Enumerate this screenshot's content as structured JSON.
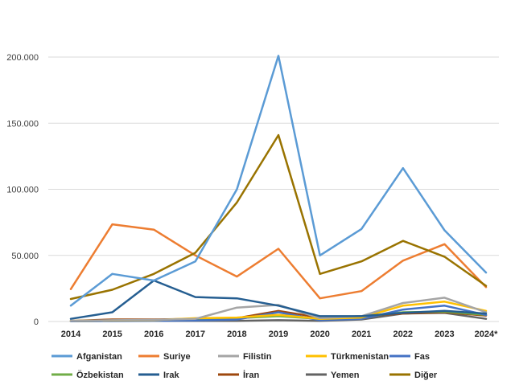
{
  "chart_data": {
    "type": "line",
    "title": "",
    "xlabel": "",
    "ylabel": "",
    "categories": [
      "2014",
      "2015",
      "2016",
      "2017",
      "2018",
      "2019",
      "2020",
      "2021",
      "2022",
      "2023",
      "2024*"
    ],
    "ylim": [
      0,
      200000
    ],
    "yticks": [
      0,
      50000,
      100000,
      150000,
      200000
    ],
    "ytick_labels": [
      "0",
      "50.000",
      "100.000",
      "150.000",
      "200.000"
    ],
    "grid": "horizontal",
    "legend_position": "bottom",
    "series": [
      {
        "name": "Afganistan",
        "color": "#5b9bd5",
        "values": [
          12000,
          36000,
          31000,
          45500,
          100000,
          201000,
          50000,
          70000,
          116000,
          69000,
          37000
        ]
      },
      {
        "name": "Suriye",
        "color": "#ed7d31",
        "values": [
          24500,
          73500,
          69500,
          50000,
          34000,
          55000,
          17500,
          23000,
          46000,
          58500,
          26000
        ]
      },
      {
        "name": "Filistin",
        "color": "#a5a5a5",
        "values": [
          500,
          1000,
          1200,
          2000,
          10500,
          12500,
          2500,
          4000,
          14000,
          18000,
          7000
        ]
      },
      {
        "name": "Türkmenistan",
        "color": "#ffc000",
        "values": [
          500,
          800,
          1000,
          2500,
          3000,
          5000,
          2000,
          3000,
          12000,
          15000,
          8000
        ]
      },
      {
        "name": "Fas",
        "color": "#4472c4",
        "values": [
          200,
          300,
          500,
          800,
          1500,
          7000,
          1000,
          2000,
          9000,
          12000,
          5000
        ]
      },
      {
        "name": "Özbekistan",
        "color": "#70ad47",
        "values": [
          300,
          500,
          700,
          1200,
          2500,
          4000,
          2000,
          3500,
          7000,
          7500,
          5000
        ]
      },
      {
        "name": "Irak",
        "color": "#255e91",
        "values": [
          2000,
          7000,
          31000,
          18500,
          17500,
          12000,
          4000,
          4000,
          6500,
          8000,
          6000
        ]
      },
      {
        "name": "İran",
        "color": "#9e480e",
        "values": [
          500,
          1500,
          1500,
          2000,
          2500,
          8000,
          3000,
          4000,
          6000,
          7000,
          4500
        ]
      },
      {
        "name": "Yemen",
        "color": "#636363",
        "values": [
          300,
          500,
          500,
          500,
          500,
          1000,
          500,
          1500,
          6000,
          6500,
          2000
        ]
      },
      {
        "name": "Diğer",
        "color": "#997300",
        "values": [
          17000,
          24000,
          36000,
          52000,
          90000,
          141000,
          36000,
          45500,
          61000,
          49000,
          27000
        ]
      }
    ]
  }
}
